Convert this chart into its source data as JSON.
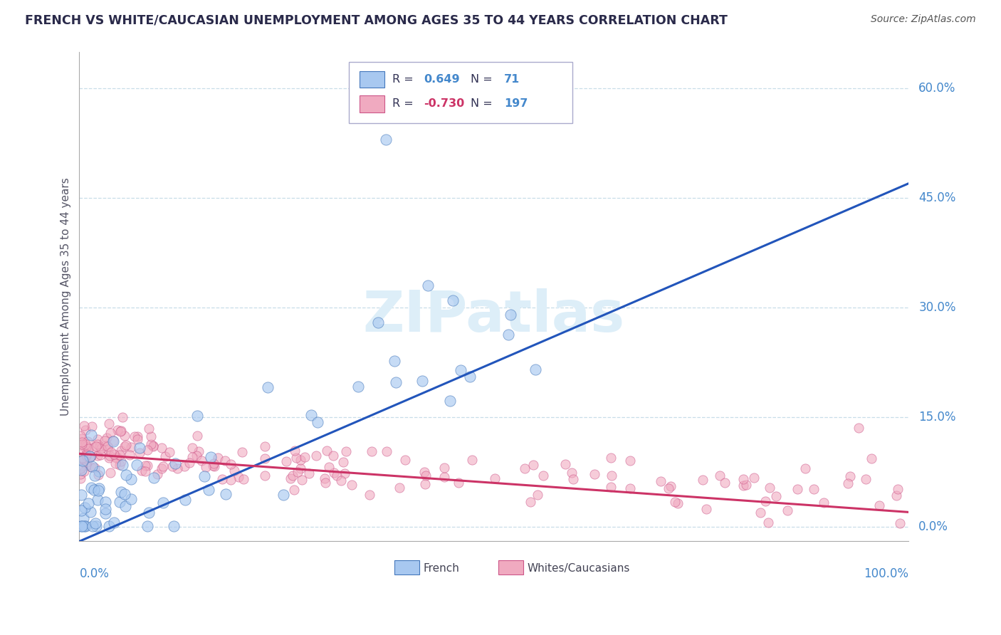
{
  "title": "FRENCH VS WHITE/CAUCASIAN UNEMPLOYMENT AMONG AGES 35 TO 44 YEARS CORRELATION CHART",
  "source": "Source: ZipAtlas.com",
  "ylabel": "Unemployment Among Ages 35 to 44 years",
  "ytick_values": [
    0,
    15,
    30,
    45,
    60
  ],
  "ytick_labels": [
    "0.0%",
    "15.0%",
    "30.0%",
    "45.0%",
    "60.0%"
  ],
  "xlim": [
    0,
    100
  ],
  "ylim": [
    -2,
    65
  ],
  "french_R": 0.649,
  "french_N": 71,
  "white_R": -0.73,
  "white_N": 197,
  "french_scatter_color": "#a8c8f0",
  "french_scatter_edge": "#4477bb",
  "french_line_color": "#2255bb",
  "white_scatter_color": "#f0aac0",
  "white_scatter_edge": "#cc5588",
  "white_line_color": "#cc3366",
  "watermark_color": "#ddeef8",
  "title_color": "#2a2a4a",
  "source_color": "#555555",
  "axis_label_color": "#4488cc",
  "grid_color": "#c8dde8",
  "bg_color": "#ffffff",
  "legend_R_color": "#4488cc",
  "legend_neg_R_color": "#cc3366",
  "french_trend_start_y": -2,
  "french_trend_end_x": 100,
  "french_trend_end_y": 47,
  "white_trend_start_y": 10,
  "white_trend_end_y": 2
}
